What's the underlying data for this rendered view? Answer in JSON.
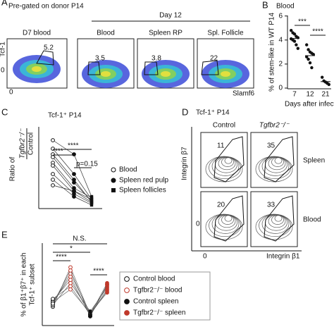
{
  "panel_a": {
    "label": "A",
    "subtitle": "Pre-gated on donor P14",
    "group": "Day 12",
    "y_axis": "Tcf-1",
    "x_axis": "Slamf6",
    "zero": "0",
    "plots": [
      {
        "title": "D7 blood",
        "gate": 5.2
      },
      {
        "title": "Blood",
        "gate": 3.5
      },
      {
        "title": "Spleen RP",
        "gate": 3.8
      },
      {
        "title": "Spl. Follicle",
        "gate": 22
      }
    ]
  },
  "panel_b": {
    "label": "B",
    "title": "Blood",
    "ylabel": "% of stem-like in WT P14",
    "xlabel": "Days after infection",
    "categories": [
      "7",
      "12",
      "21"
    ],
    "ylim": [
      0,
      6.1
    ],
    "yticks": [
      0,
      2,
      4,
      6
    ],
    "values": [
      [
        4.8,
        4.6,
        4.5,
        4.3,
        4.2,
        4.1,
        4.0,
        3.9,
        3.6,
        3.3
      ],
      [
        3.6,
        3.2,
        3.0,
        2.9,
        2.8,
        2.6,
        2.4,
        2.1,
        1.7
      ],
      [
        0.9,
        0.6,
        0.5,
        0.4,
        0.3
      ]
    ],
    "significance": [
      "***",
      "****"
    ]
  },
  "panel_c": {
    "label": "C",
    "title": "Tcf-1⁺ P14",
    "ylabel_top": "Ratio of",
    "ylabel_num": "Tgfbr2⁻/⁻",
    "ylabel_den": "Control",
    "ylim": [
      0,
      1.45
    ],
    "groups": [
      "Blood",
      "Spleen red pulp",
      "Spleen follicles"
    ],
    "mice": [
      [
        1.2,
        0.95,
        0.2
      ],
      [
        1.05,
        0.6,
        0.15
      ],
      [
        0.95,
        0.5,
        0.1
      ],
      [
        0.9,
        0.45,
        0.12
      ],
      [
        0.8,
        0.35,
        0.18
      ],
      [
        0.75,
        0.3,
        0.1
      ],
      [
        0.6,
        0.25,
        0.08
      ],
      [
        0.5,
        0.2,
        0.05
      ],
      [
        0.4,
        0.3,
        0.15
      ]
    ],
    "significance": [
      "***",
      "****",
      "p=0.15"
    ]
  },
  "panel_d": {
    "label": "D",
    "title": "Tcf-1⁺ P14",
    "columns": [
      "Control",
      "Tgfbr2⁻/⁻"
    ],
    "rows": [
      "Spleen",
      "Blood"
    ],
    "gates": [
      [
        11,
        35
      ],
      [
        20,
        33
      ]
    ],
    "y_axis": "Integrin β7",
    "x_axis": "Integrin β1",
    "zero": "0"
  },
  "panel_e": {
    "label": "E",
    "ylabel": [
      "% of β1⁺β7⁺ in each",
      "Tcf-1⁺ subset"
    ],
    "ylim": [
      0,
      50
    ],
    "groups": [
      "Control blood",
      "Tgfbr2⁻/⁻ blood",
      "Control spleen",
      "Tgfbr2⁻/⁻ spleen"
    ],
    "mice": [
      [
        11,
        36,
        6,
        26
      ],
      [
        13,
        32,
        7,
        24
      ],
      [
        14,
        30,
        5,
        25
      ],
      [
        15,
        28,
        6,
        22
      ],
      [
        12,
        26,
        8,
        23
      ],
      [
        16,
        24,
        6,
        21
      ],
      [
        14,
        22,
        7,
        20
      ],
      [
        13,
        34,
        5,
        25
      ]
    ],
    "significance": [
      "N.S.",
      "*",
      "****",
      "****"
    ]
  }
}
